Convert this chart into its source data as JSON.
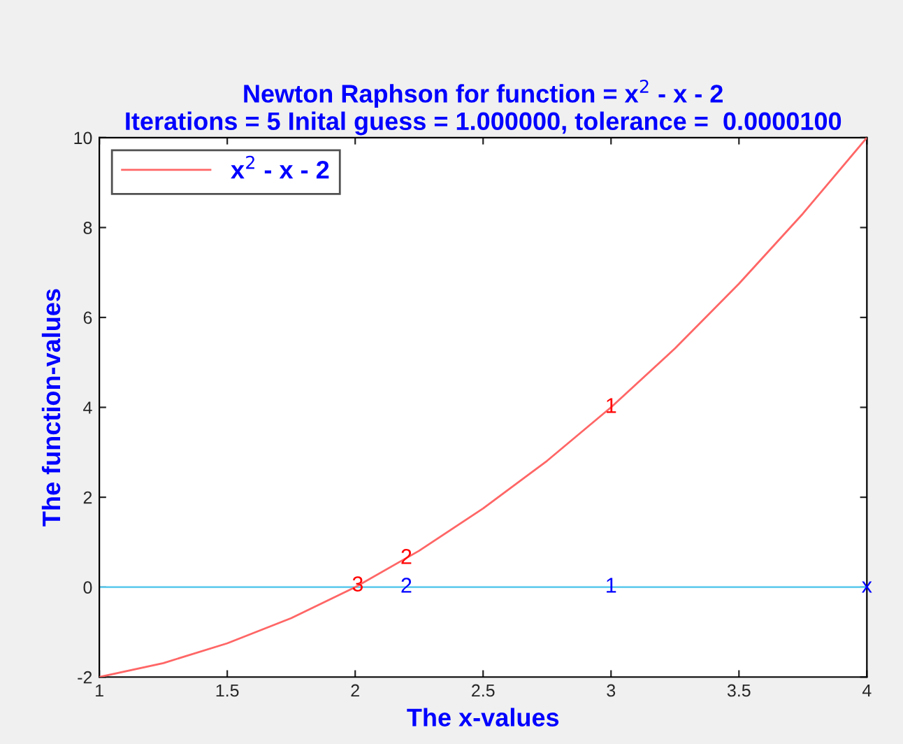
{
  "chart_data": {
    "type": "line",
    "title": "Newton Raphson for function = x$^{2}$ - x - 2\nIterations = 5 Inital guess = 1.000000, tolerance =  0.0000100",
    "xlabel": "The x-values",
    "ylabel": "The function-values",
    "series": [
      {
        "name": "x$^{2}$ - x - 2",
        "color": "#ff6666",
        "x": [
          1,
          1.25,
          1.5,
          1.75,
          2,
          2.25,
          2.5,
          2.75,
          3,
          3.25,
          3.5,
          3.75,
          4
        ],
        "values": [
          -2,
          -1.69,
          -1.25,
          -0.69,
          0,
          0.81,
          1.75,
          2.81,
          4,
          5.31,
          6.75,
          8.31,
          10
        ]
      }
    ],
    "annotations": [
      {
        "text": "1",
        "x": 3,
        "y": 4
      },
      {
        "text": "2",
        "x": 2.2,
        "y": 0.64
      },
      {
        "text": "3",
        "x": 2.01,
        "y": 0.03
      },
      {
        "text": "1",
        "x": 3,
        "y": 0
      },
      {
        "text": "2",
        "x": 2.2,
        "y": 0
      },
      {
        "text": "x",
        "x": 4,
        "y": 0
      }
    ],
    "ref_lines": [
      {
        "axis": "y",
        "value": 0,
        "color": "#66ccee"
      }
    ],
    "xlim": [
      1,
      4
    ],
    "xticks": [
      1,
      1.5,
      2,
      2.5,
      3,
      3.5,
      4
    ],
    "ylim": [
      -2,
      10
    ],
    "yticks": [
      -2,
      0,
      2,
      4,
      6,
      8,
      10
    ],
    "grid": false,
    "legend": "top left",
    "line_style": "solid"
  }
}
